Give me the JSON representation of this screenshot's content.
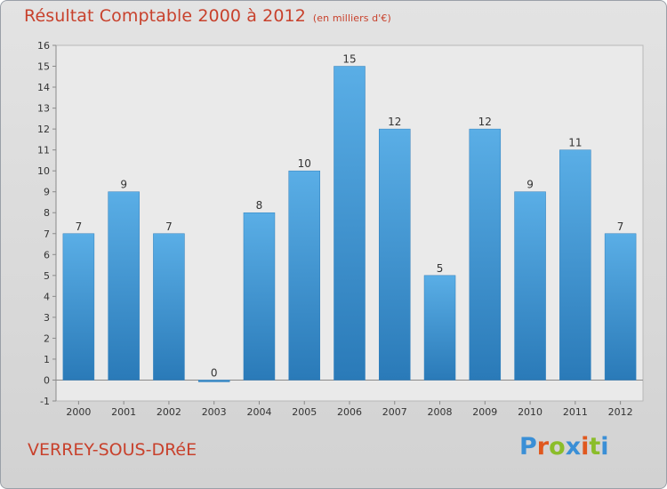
{
  "title": "Résultat Comptable 2000 à 2012",
  "subtitle": "(en milliers d'€)",
  "commune": "VERREY-SOUS-DRéE",
  "brand": {
    "text": "Proxiti",
    "letter_colors": [
      "#3a8fd6",
      "#e0581e",
      "#8bbd2a",
      "#3a8fd6",
      "#e0581e",
      "#8bbd2a",
      "#3a8fd6"
    ]
  },
  "colors": {
    "bar_top": "#5aaee6",
    "bar_bottom": "#2a7ab8",
    "text": "#c8412c"
  },
  "chart_data": {
    "type": "bar",
    "categories": [
      "2000",
      "2001",
      "2002",
      "2003",
      "2004",
      "2005",
      "2006",
      "2007",
      "2008",
      "2009",
      "2010",
      "2011",
      "2012"
    ],
    "values": [
      7,
      9,
      7,
      0,
      8,
      10,
      15,
      12,
      5,
      12,
      9,
      11,
      7
    ],
    "title": "Résultat Comptable 2000 à 2012",
    "subtitle": "(en milliers d'€)",
    "ylim": [
      -1,
      16
    ],
    "yticks": [
      -1,
      0,
      1,
      2,
      3,
      4,
      5,
      6,
      7,
      8,
      9,
      10,
      11,
      12,
      13,
      14,
      15,
      16
    ],
    "grid": false
  }
}
